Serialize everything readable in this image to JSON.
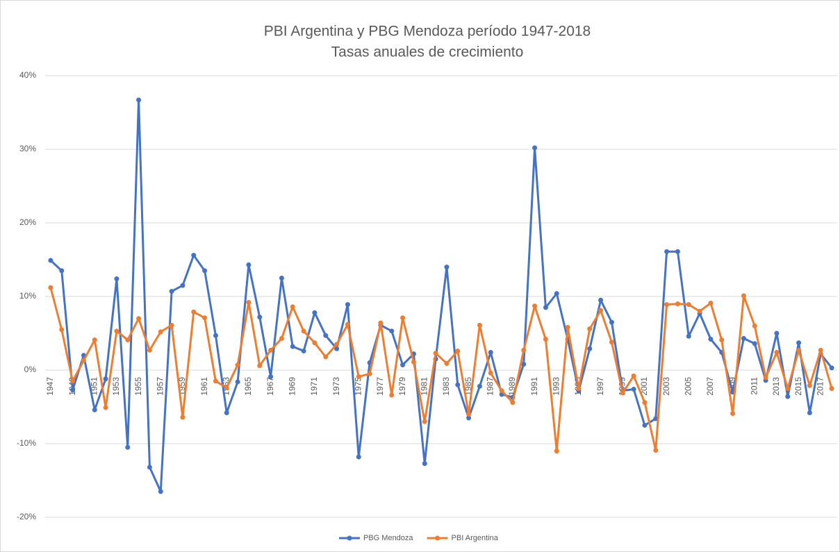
{
  "chart_data": {
    "type": "line",
    "title": "PBI Argentina y PBG Mendoza período 1947-2018",
    "subtitle": "Tasas anuales de crecimiento",
    "categories": [
      "1947",
      null,
      "1949",
      null,
      "1951",
      null,
      "1953",
      null,
      "1955",
      null,
      "1957",
      null,
      "1959",
      null,
      "1961",
      null,
      "1963",
      null,
      "1965",
      null,
      "1967",
      null,
      "1969",
      null,
      "1971",
      null,
      "1973",
      null,
      "1975",
      null,
      "1977",
      null,
      "1979",
      null,
      "1981",
      null,
      "1983",
      null,
      "1985",
      null,
      "1987",
      null,
      "1989",
      null,
      "1991",
      null,
      "1993",
      null,
      "1995",
      null,
      "1997",
      null,
      "1999",
      null,
      "2001",
      null,
      "2003",
      null,
      "2005",
      null,
      "2007",
      null,
      "2009",
      null,
      "2011",
      null,
      "2013",
      null,
      "2015",
      null,
      "2017",
      null
    ],
    "series": [
      {
        "name": "PBG Mendoza",
        "color": "#4472c4",
        "values": [
          14.9,
          13.5,
          -2.7,
          2.0,
          -5.4,
          -1.2,
          12.4,
          -10.5,
          36.7,
          -13.2,
          -16.5,
          10.7,
          11.5,
          15.6,
          13.5,
          4.7,
          -5.8,
          -1.6,
          14.3,
          7.2,
          -0.9,
          12.5,
          3.2,
          2.6,
          7.8,
          4.7,
          2.9,
          8.9,
          -11.8,
          1.0,
          6.1,
          5.3,
          0.7,
          2.2,
          -12.7,
          1.5,
          14.0,
          -2.0,
          -6.5,
          -2.2,
          2.4,
          -3.3,
          -3.7,
          0.8,
          30.2,
          8.5,
          10.4,
          4.2,
          -2.8,
          2.9,
          9.5,
          6.5,
          -2.8,
          -2.6,
          -7.5,
          -6.6,
          16.1,
          16.1,
          4.6,
          7.7,
          4.2,
          2.4,
          -3.0,
          4.3,
          3.6,
          -1.4,
          5.0,
          -3.6,
          3.7,
          -5.8,
          2.2,
          0.3
        ]
      },
      {
        "name": "PBI Argentina",
        "color": "#ed7d31",
        "values": [
          11.2,
          5.5,
          -1.5,
          1.3,
          4.1,
          -5.1,
          5.3,
          4.1,
          7.0,
          2.7,
          5.2,
          6.1,
          -6.4,
          7.9,
          7.1,
          -1.5,
          -2.4,
          0.7,
          9.2,
          0.6,
          2.7,
          4.3,
          8.6,
          5.3,
          3.7,
          1.8,
          3.5,
          6.2,
          -0.9,
          -0.5,
          6.4,
          -3.4,
          7.1,
          1.1,
          -7.0,
          2.3,
          0.9,
          2.6,
          -6.0,
          6.1,
          -0.4,
          -2.8,
          -4.4,
          2.7,
          8.7,
          4.2,
          -11.0,
          5.8,
          -2.5,
          5.6,
          8.1,
          3.8,
          -3.1,
          -0.8,
          -4.4,
          -10.9,
          8.9,
          9.0,
          8.9,
          8.0,
          9.1,
          4.1,
          -5.9,
          10.1,
          6.0,
          -1.0,
          2.4,
          -2.5,
          2.7,
          -2.1,
          2.7,
          -2.5
        ]
      }
    ],
    "ylim": [
      -20,
      40
    ],
    "yticks": [
      {
        "value": -20,
        "label": "-20%"
      },
      {
        "value": -10,
        "label": "-10%"
      },
      {
        "value": 0,
        "label": "0%"
      },
      {
        "value": 10,
        "label": "10%"
      },
      {
        "value": 20,
        "label": "20%"
      },
      {
        "value": 30,
        "label": "30%"
      },
      {
        "value": 40,
        "label": "40%"
      }
    ],
    "grid": true,
    "legend": "bottom"
  }
}
